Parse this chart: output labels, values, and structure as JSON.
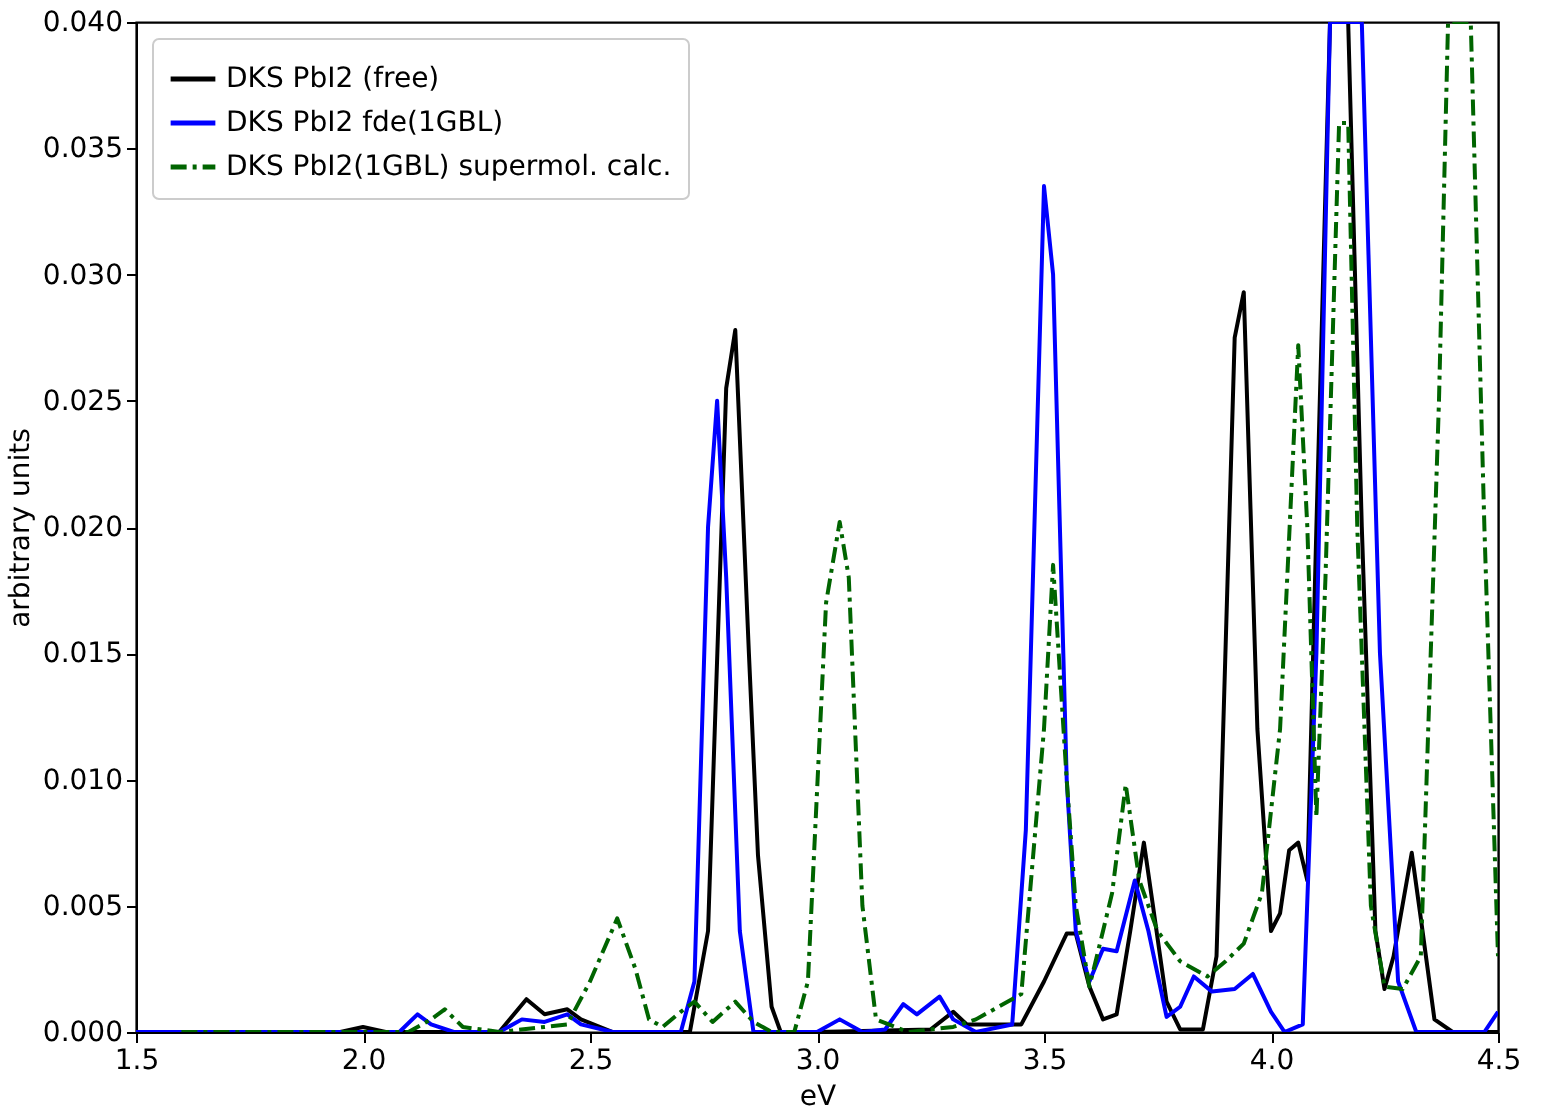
{
  "chart_data": {
    "type": "line",
    "xlabel": "eV",
    "ylabel": "arbitrary units",
    "xlim": [
      1.5,
      4.5
    ],
    "ylim": [
      0,
      0.04
    ],
    "xticks": [
      1.5,
      {
        "value": 2,
        "label": "2.0"
      },
      2.5,
      {
        "value": 3,
        "label": "3.0"
      },
      3.5,
      {
        "value": 4,
        "label": "4.0"
      },
      4.5
    ],
    "yticks": [
      {
        "value": 0,
        "label": "0.000"
      },
      {
        "value": 0.005,
        "label": "0.005"
      },
      {
        "value": 0.01,
        "label": "0.010"
      },
      {
        "value": 0.015,
        "label": "0.015"
      },
      {
        "value": 0.02,
        "label": "0.020"
      },
      {
        "value": 0.025,
        "label": "0.025"
      },
      {
        "value": 0.03,
        "label": "0.030"
      },
      {
        "value": 0.035,
        "label": "0.035"
      },
      {
        "value": 0.04,
        "label": "0.040"
      }
    ],
    "grid": false,
    "legend": "top left",
    "marker": "none",
    "series": [
      {
        "name": "DKS PbI2 (free)",
        "color": "#000000",
        "line_style": "solid",
        "x": [
          1.5,
          1.95,
          2.0,
          2.05,
          2.3,
          2.36,
          2.4,
          2.45,
          2.48,
          2.55,
          2.72,
          2.76,
          2.8,
          2.82,
          2.85,
          2.87,
          2.9,
          2.92,
          3.0,
          3.25,
          3.3,
          3.33,
          3.4,
          3.45,
          3.5,
          3.55,
          3.57,
          3.6,
          3.63,
          3.66,
          3.69,
          3.72,
          3.74,
          3.77,
          3.8,
          3.85,
          3.88,
          3.92,
          3.94,
          3.97,
          4.0,
          4.02,
          4.04,
          4.06,
          4.08,
          4.1,
          4.13,
          4.17,
          4.2,
          4.23,
          4.25,
          4.27,
          4.31,
          4.33,
          4.36,
          4.4,
          4.5
        ],
        "values": [
          0,
          0,
          0.0002,
          0,
          0,
          0.0013,
          0.0007,
          0.0009,
          0.0005,
          0,
          0,
          0.004,
          0.0255,
          0.0278,
          0.015,
          0.007,
          0.001,
          0,
          0,
          0.0001,
          0.0008,
          0.0003,
          0.0003,
          0.0003,
          0.002,
          0.0039,
          0.0039,
          0.0018,
          0.0005,
          0.0007,
          0.004,
          0.0075,
          0.005,
          0.0012,
          0.0001,
          0.0001,
          0.003,
          0.0275,
          0.0293,
          0.012,
          0.004,
          0.0047,
          0.0072,
          0.0075,
          0.006,
          0.02,
          0.04,
          0.04,
          0.02,
          0.004,
          0.0017,
          0.003,
          0.0071,
          0.0045,
          0.0005,
          0,
          0
        ]
      },
      {
        "name": "DKS PbI2 fde(1GBL)",
        "color": "#0000ff",
        "line_style": "solid",
        "x": [
          1.5,
          2.08,
          2.12,
          2.15,
          2.2,
          2.3,
          2.35,
          2.4,
          2.45,
          2.48,
          2.55,
          2.7,
          2.73,
          2.76,
          2.78,
          2.8,
          2.83,
          2.86,
          3.0,
          3.05,
          3.1,
          3.15,
          3.19,
          3.22,
          3.27,
          3.3,
          3.35,
          3.43,
          3.46,
          3.5,
          3.52,
          3.55,
          3.57,
          3.6,
          3.63,
          3.66,
          3.7,
          3.73,
          3.77,
          3.8,
          3.83,
          3.87,
          3.92,
          3.96,
          4.0,
          4.03,
          4.07,
          4.1,
          4.13,
          4.2,
          4.24,
          4.28,
          4.32,
          4.47,
          4.5
        ],
        "values": [
          0,
          0,
          0.0007,
          0.0003,
          0,
          0,
          0.0005,
          0.0004,
          0.0007,
          0.0003,
          0,
          0,
          0.002,
          0.02,
          0.025,
          0.018,
          0.004,
          0,
          0,
          0.0005,
          0,
          0.0001,
          0.0011,
          0.0007,
          0.0014,
          0.0005,
          0,
          0.0003,
          0.008,
          0.0335,
          0.03,
          0.01,
          0.004,
          0.002,
          0.0033,
          0.0032,
          0.006,
          0.004,
          0.0006,
          0.001,
          0.0022,
          0.0016,
          0.0017,
          0.0023,
          0.0008,
          0,
          0.0003,
          0.015,
          0.04,
          0.04,
          0.015,
          0.002,
          0,
          0,
          0.0008
        ]
      },
      {
        "name": "DKS PbI2(1GBL) supermol. calc.",
        "color": "#006400",
        "line_style": "dashed",
        "x": [
          1.6,
          2.1,
          2.15,
          2.18,
          2.22,
          2.3,
          2.4,
          2.45,
          2.5,
          2.56,
          2.6,
          2.63,
          2.66,
          2.7,
          2.73,
          2.77,
          2.82,
          2.86,
          2.9,
          2.95,
          2.98,
          3.02,
          3.05,
          3.07,
          3.1,
          3.13,
          3.2,
          3.3,
          3.35,
          3.4,
          3.45,
          3.5,
          3.52,
          3.55,
          3.57,
          3.6,
          3.63,
          3.65,
          3.68,
          3.71,
          3.75,
          3.8,
          3.86,
          3.9,
          3.94,
          3.98,
          4.02,
          4.06,
          4.08,
          4.1,
          4.12,
          4.15,
          4.17,
          4.19,
          4.22,
          4.25,
          4.29,
          4.33,
          4.37,
          4.39,
          4.44,
          4.47,
          4.5
        ],
        "values": [
          0,
          0,
          0.0005,
          0.0009,
          0.0002,
          0,
          0.0002,
          0.0003,
          0.002,
          0.0045,
          0.0025,
          0.0005,
          0.0002,
          0.0008,
          0.0012,
          0.0004,
          0.0012,
          0.0004,
          0,
          0,
          0.002,
          0.017,
          0.0202,
          0.018,
          0.005,
          0.0005,
          0,
          0.0002,
          0.0005,
          0.001,
          0.0015,
          0.012,
          0.0185,
          0.01,
          0.005,
          0.0018,
          0.004,
          0.0055,
          0.0098,
          0.006,
          0.004,
          0.0028,
          0.0022,
          0.0028,
          0.0035,
          0.0055,
          0.012,
          0.0272,
          0.02,
          0.0085,
          0.018,
          0.036,
          0.036,
          0.02,
          0.005,
          0.0018,
          0.0017,
          0.003,
          0.025,
          0.04,
          0.04,
          0.02,
          0.003
        ]
      }
    ]
  }
}
